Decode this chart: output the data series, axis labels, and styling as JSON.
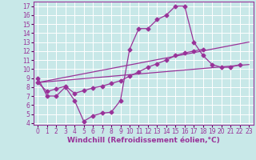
{
  "xlabel": "Windchill (Refroidissement éolien,°C)",
  "background_color": "#c8e8e8",
  "grid_color": "#ffffff",
  "line_color": "#993399",
  "xlim": [
    -0.5,
    23.5
  ],
  "ylim": [
    3.8,
    17.5
  ],
  "xticks": [
    0,
    1,
    2,
    3,
    4,
    5,
    6,
    7,
    8,
    9,
    10,
    11,
    12,
    13,
    14,
    15,
    16,
    17,
    18,
    19,
    20,
    21,
    22,
    23
  ],
  "yticks": [
    4,
    5,
    6,
    7,
    8,
    9,
    10,
    11,
    12,
    13,
    14,
    15,
    16,
    17
  ],
  "series1_x": [
    0,
    1,
    2,
    3,
    4,
    5,
    6,
    7,
    8,
    9,
    10,
    11,
    12,
    13,
    14,
    15,
    16,
    17,
    18,
    19,
    20,
    21,
    22
  ],
  "series1_y": [
    9.0,
    7.0,
    7.0,
    8.0,
    6.5,
    4.2,
    4.8,
    5.1,
    5.2,
    6.5,
    12.2,
    14.5,
    14.5,
    15.5,
    16.0,
    17.0,
    17.0,
    13.0,
    11.5,
    10.5,
    10.2,
    10.2,
    10.5
  ],
  "series2_x": [
    0,
    1,
    2,
    3,
    4,
    5,
    6,
    7,
    8,
    9,
    10,
    11,
    12,
    13,
    14,
    15,
    16,
    17,
    18
  ],
  "series2_y": [
    8.5,
    7.5,
    7.8,
    8.1,
    7.3,
    7.6,
    7.9,
    8.1,
    8.4,
    8.7,
    9.2,
    9.7,
    10.2,
    10.6,
    11.0,
    11.5,
    11.8,
    12.0,
    12.2
  ],
  "series3_x": [
    0,
    23
  ],
  "series3_y": [
    8.5,
    10.5
  ],
  "series4_x": [
    0,
    23
  ],
  "series4_y": [
    8.5,
    13.0
  ],
  "xlabel_fontsize": 6.5,
  "tick_fontsize": 5.5
}
